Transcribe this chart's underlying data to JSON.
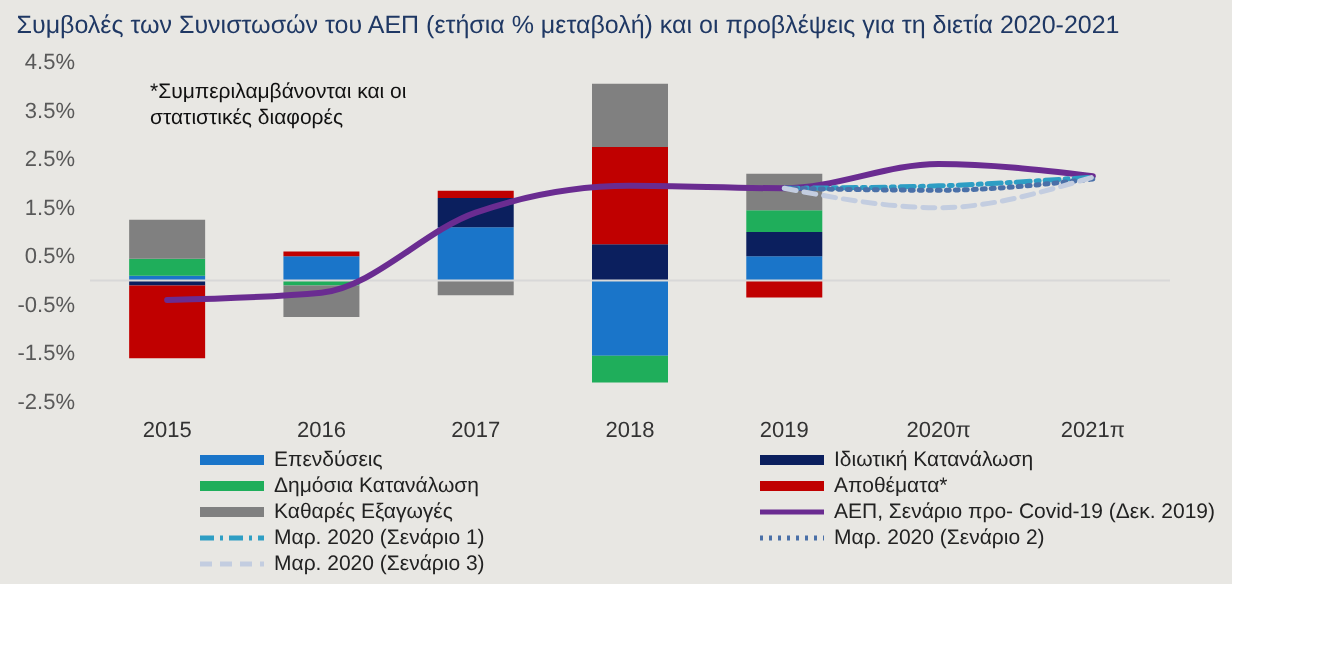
{
  "chart_data": {
    "type": "bar",
    "title": "Συμβολές των Συνιστωσών του ΑΕΠ (ετήσια % μεταβολή)  και οι προβλέψεις για τη διετία 2020-2021",
    "categories": [
      "2015",
      "2016",
      "2017",
      "2018",
      "2019",
      "2020π",
      "2021π"
    ],
    "stacked": true,
    "series": [
      {
        "name": "Επενδύσεις",
        "type": "bar",
        "color": "#1a75c9",
        "values": [
          0.1,
          0.5,
          1.1,
          -1.55,
          0.5,
          null,
          null
        ]
      },
      {
        "name": "Ιδιωτική Κατανάλωση",
        "type": "bar",
        "color": "#0b1f5e",
        "values": [
          -0.1,
          null,
          0.6,
          0.75,
          0.5,
          null,
          null
        ]
      },
      {
        "name": "Δημόσια Κατανάλωση",
        "type": "bar",
        "color": "#1fae5b",
        "values": [
          0.35,
          -0.1,
          null,
          -0.55,
          0.45,
          null,
          null
        ]
      },
      {
        "name": "Αποθέματα*",
        "type": "bar",
        "color": "#c00000",
        "values": [
          -1.5,
          0.1,
          0.15,
          2.0,
          -0.35,
          null,
          null
        ]
      },
      {
        "name": "Καθαρές Εξαγωγές",
        "type": "bar",
        "color": "#808080",
        "values": [
          0.8,
          -0.65,
          -0.3,
          1.3,
          0.75,
          null,
          null
        ]
      },
      {
        "name": "ΑΕΠ, Σενάριο προ- Covid-19 (Δεκ. 2019)",
        "type": "line",
        "line_style": "solid",
        "color": "#6a2c91",
        "values": [
          -0.4,
          -0.25,
          1.4,
          1.95,
          1.9,
          2.4,
          2.15
        ]
      },
      {
        "name": "Μαρ. 2020 (Σενάριο 1)",
        "type": "line",
        "line_style": "dashdot",
        "color": "#2e9ec4",
        "values": [
          null,
          null,
          null,
          null,
          1.9,
          1.95,
          2.13
        ]
      },
      {
        "name": "Μαρ. 2020 (Σενάριο 2)",
        "type": "line",
        "line_style": "dotted",
        "color": "#4a70a8",
        "values": [
          null,
          null,
          null,
          null,
          1.9,
          1.86,
          2.09
        ]
      },
      {
        "name": "Μαρ. 2020 (Σενάριο 3)",
        "type": "line",
        "line_style": "dashed",
        "color": "#c3cde0",
        "values": [
          null,
          null,
          null,
          null,
          1.9,
          1.5,
          2.13
        ]
      }
    ],
    "ylim": [
      -2.5,
      4.5
    ],
    "yticks": [
      {
        "value": -2.5,
        "label": "-2.5%"
      },
      {
        "value": -1.5,
        "label": "-1.5%"
      },
      {
        "value": -0.5,
        "label": "-0.5%"
      },
      {
        "value": 0.5,
        "label": "0.5%"
      },
      {
        "value": 1.5,
        "label": "1.5%"
      },
      {
        "value": 2.5,
        "label": "2.5%"
      },
      {
        "value": 3.5,
        "label": "3.5%"
      },
      {
        "value": 4.5,
        "label": "4.5%"
      }
    ],
    "ref_lines": [
      {
        "axis": "y",
        "value": 0,
        "color": "#d8d8d8"
      }
    ],
    "annotations": [
      "*Συμπεριλαμβάνονται και οι στατιστικές διαφορές"
    ],
    "grid": false,
    "marker": "none",
    "legend": "bottom"
  }
}
